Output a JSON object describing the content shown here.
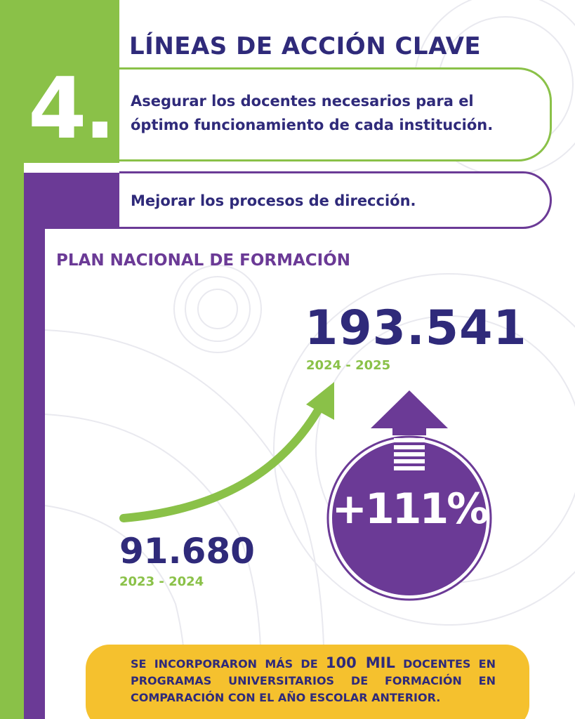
{
  "section_number": "4.",
  "title": "LÍNEAS DE ACCIÓN CLAVE",
  "actions": [
    {
      "line1": "Asegurar los docentes necesarios para el",
      "line2": "óptimo funcionamiento de cada institución."
    },
    {
      "line1": "Mejorar los procesos de dirección."
    }
  ],
  "subtitle": "PLAN NACIONAL DE FORMACIÓN",
  "stats": {
    "current": {
      "value": "193.541",
      "period": "2024 - 2025"
    },
    "previous": {
      "value": "91.680",
      "period": "2023 - 2024"
    },
    "growth": "+111%"
  },
  "banner": {
    "part1": "SE INCORPORARON MÁS DE ",
    "highlight": "100 MIL",
    "part2": " DOCENTES EN PROGRAMAS UNIVERSITARIOS DE FORMACIÓN EN COMPARACIÓN CON EL AÑO ESCOLAR ANTERIOR."
  },
  "colors": {
    "green": "#8ac148",
    "purple": "#6b3a96",
    "navy": "#2f2a7a",
    "yellow": "#f5c12e"
  },
  "icons": [
    "growth-curve-arrow-icon",
    "up-arrow-icon"
  ]
}
